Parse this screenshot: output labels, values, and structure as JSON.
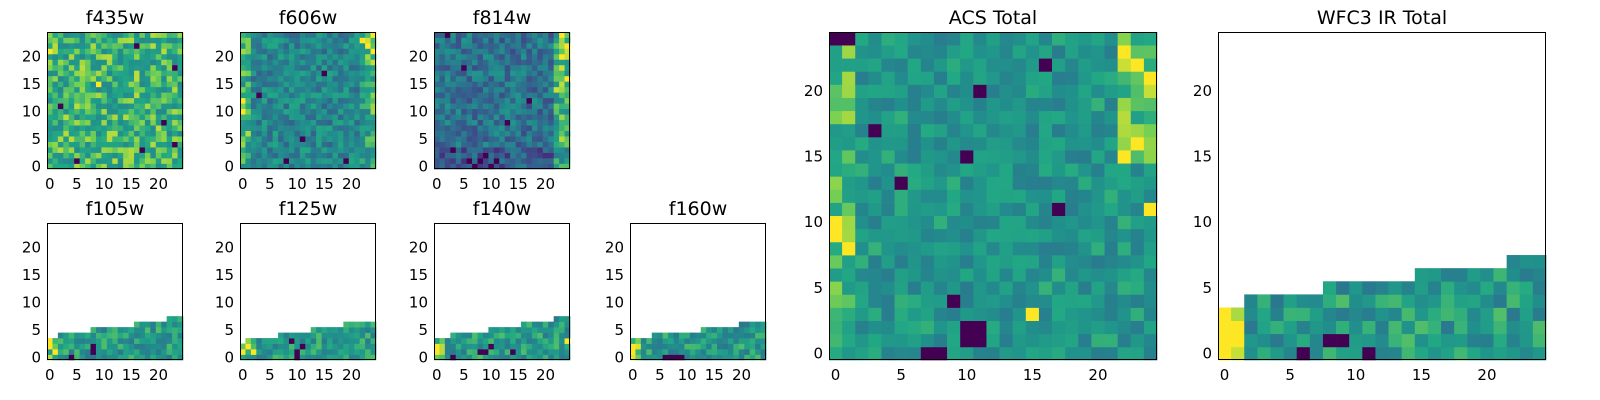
{
  "chart_data": [
    {
      "type": "heatmap",
      "title": "f435w",
      "colormap": "viridis",
      "grid": false,
      "xticks": [
        "0",
        "5",
        "10",
        "15",
        "20"
      ],
      "yticks": [
        "0",
        "5",
        "10",
        "15",
        "20"
      ],
      "xlim": [
        0,
        25
      ],
      "ylim": [
        0,
        25
      ],
      "coverage_rows_by_column": [
        25,
        25,
        25,
        25,
        25,
        25,
        25,
        25,
        25,
        25,
        25,
        25,
        25,
        25,
        25,
        25,
        25,
        25,
        25,
        25,
        25,
        25,
        25,
        25,
        25
      ],
      "dark_pixels": [
        [
          5,
          1
        ],
        [
          17,
          3
        ],
        [
          2,
          11
        ],
        [
          21,
          8
        ],
        [
          23,
          4
        ],
        [
          16,
          22
        ],
        [
          23,
          18
        ]
      ],
      "bright_pixels": [
        [
          0,
          21
        ],
        [
          9,
          15
        ]
      ],
      "level_profile": "uniform-bright"
    },
    {
      "type": "heatmap",
      "title": "f606w",
      "colormap": "viridis",
      "grid": false,
      "xticks": [
        "0",
        "5",
        "10",
        "15",
        "20"
      ],
      "yticks": [
        "0",
        "5",
        "10",
        "15",
        "20"
      ],
      "xlim": [
        0,
        25
      ],
      "ylim": [
        0,
        25
      ],
      "coverage_rows_by_column": [
        25,
        25,
        25,
        25,
        25,
        25,
        25,
        25,
        25,
        25,
        25,
        25,
        25,
        25,
        25,
        25,
        25,
        25,
        25,
        25,
        25,
        25,
        25,
        25,
        25
      ],
      "dark_pixels": [
        [
          8,
          1
        ],
        [
          3,
          13
        ],
        [
          19,
          1
        ],
        [
          15,
          17
        ],
        [
          11,
          5
        ]
      ],
      "bright_pixels": [
        [
          22,
          23
        ],
        [
          23,
          22
        ],
        [
          0,
          10
        ],
        [
          0,
          12
        ],
        [
          24,
          24
        ]
      ],
      "level_profile": "left-right-bright"
    },
    {
      "type": "heatmap",
      "title": "f814w",
      "colormap": "viridis",
      "grid": false,
      "xticks": [
        "0",
        "5",
        "10",
        "15",
        "20"
      ],
      "yticks": [
        "0",
        "5",
        "10",
        "15",
        "20"
      ],
      "xlim": [
        0,
        25
      ],
      "ylim": [
        0,
        25
      ],
      "coverage_rows_by_column": [
        25,
        25,
        25,
        25,
        25,
        25,
        25,
        25,
        25,
        25,
        25,
        25,
        25,
        25,
        25,
        25,
        25,
        25,
        25,
        25,
        25,
        25,
        25,
        25,
        25
      ],
      "dark_pixels": [
        [
          7,
          0
        ],
        [
          8,
          1
        ],
        [
          10,
          0
        ],
        [
          11,
          1
        ],
        [
          9,
          2
        ],
        [
          6,
          1
        ],
        [
          3,
          3
        ],
        [
          2,
          24
        ],
        [
          5,
          18
        ],
        [
          13,
          8
        ],
        [
          17,
          12
        ]
      ],
      "bright_pixels": [
        [
          23,
          20
        ],
        [
          24,
          22
        ],
        [
          23,
          24
        ],
        [
          24,
          16
        ]
      ],
      "level_profile": "right-bright-bottom-dark"
    },
    {
      "type": "heatmap",
      "title": "f105w",
      "colormap": "viridis",
      "grid": false,
      "xticks": [
        "0",
        "5",
        "10",
        "15",
        "20"
      ],
      "yticks": [
        "0",
        "5",
        "10",
        "15",
        "20"
      ],
      "xlim": [
        0,
        25
      ],
      "ylim": [
        0,
        25
      ],
      "coverage_rows_by_column": [
        4,
        4,
        5,
        5,
        5,
        5,
        5,
        5,
        6,
        6,
        6,
        6,
        6,
        6,
        6,
        6,
        7,
        7,
        7,
        7,
        7,
        7,
        8,
        8,
        8
      ],
      "dark_pixels": [
        [
          8,
          1
        ],
        [
          8,
          2
        ],
        [
          4,
          0
        ]
      ],
      "bright_pixels": [
        [
          0,
          2
        ],
        [
          0,
          3
        ],
        [
          1,
          1
        ]
      ],
      "level_profile": "left-bright"
    },
    {
      "type": "heatmap",
      "title": "f125w",
      "colormap": "viridis",
      "grid": false,
      "xticks": [
        "0",
        "5",
        "10",
        "15",
        "20"
      ],
      "yticks": [
        "0",
        "5",
        "10",
        "15",
        "20"
      ],
      "xlim": [
        0,
        25
      ],
      "ylim": [
        0,
        25
      ],
      "coverage_rows_by_column": [
        3,
        4,
        4,
        4,
        4,
        4,
        4,
        5,
        5,
        5,
        5,
        5,
        5,
        6,
        6,
        6,
        6,
        6,
        6,
        7,
        7,
        7,
        7,
        7,
        7
      ],
      "dark_pixels": [
        [
          10,
          0
        ],
        [
          10,
          1
        ],
        [
          11,
          2
        ],
        [
          9,
          3
        ]
      ],
      "bright_pixels": [
        [
          0,
          1
        ],
        [
          1,
          2
        ],
        [
          2,
          1
        ]
      ],
      "level_profile": "left-bright"
    },
    {
      "type": "heatmap",
      "title": "f140w",
      "colormap": "viridis",
      "grid": false,
      "xticks": [
        "0",
        "5",
        "10",
        "15",
        "20"
      ],
      "yticks": [
        "0",
        "5",
        "10",
        "15",
        "20"
      ],
      "xlim": [
        0,
        25
      ],
      "ylim": [
        0,
        25
      ],
      "coverage_rows_by_column": [
        4,
        4,
        4,
        5,
        5,
        5,
        5,
        5,
        5,
        5,
        6,
        6,
        6,
        6,
        6,
        6,
        7,
        7,
        7,
        7,
        7,
        7,
        8,
        8,
        8
      ],
      "dark_pixels": [
        [
          8,
          1
        ],
        [
          9,
          1
        ],
        [
          10,
          2
        ],
        [
          14,
          1
        ],
        [
          3,
          0
        ]
      ],
      "bright_pixels": [
        [
          0,
          1
        ],
        [
          0,
          2
        ],
        [
          24,
          3
        ]
      ],
      "level_profile": "left-bright"
    },
    {
      "type": "heatmap",
      "title": "f160w",
      "colormap": "viridis",
      "grid": false,
      "xticks": [
        "0",
        "5",
        "10",
        "15",
        "20"
      ],
      "yticks": [
        "0",
        "5",
        "10",
        "15",
        "20"
      ],
      "xlim": [
        0,
        25
      ],
      "ylim": [
        0,
        25
      ],
      "coverage_rows_by_column": [
        4,
        4,
        4,
        4,
        5,
        5,
        5,
        5,
        5,
        5,
        5,
        5,
        5,
        6,
        6,
        6,
        6,
        6,
        6,
        6,
        7,
        7,
        7,
        7,
        7
      ],
      "dark_pixels": [
        [
          6,
          0
        ],
        [
          7,
          0
        ],
        [
          8,
          0
        ],
        [
          9,
          0
        ]
      ],
      "bright_pixels": [
        [
          0,
          1
        ],
        [
          0,
          2
        ]
      ],
      "level_profile": "left-bright"
    },
    {
      "type": "heatmap",
      "title": "ACS Total",
      "colormap": "viridis",
      "grid": false,
      "xticks": [
        "0",
        "5",
        "10",
        "15",
        "20"
      ],
      "yticks": [
        "0",
        "5",
        "10",
        "15",
        "20"
      ],
      "xlim": [
        0,
        25
      ],
      "ylim": [
        0,
        25
      ],
      "coverage_rows_by_column": [
        25,
        25,
        25,
        25,
        25,
        25,
        25,
        25,
        25,
        25,
        25,
        25,
        25,
        25,
        25,
        25,
        25,
        25,
        25,
        25,
        25,
        25,
        25,
        25,
        25
      ],
      "dark_pixels": [
        [
          0,
          24
        ],
        [
          1,
          24
        ],
        [
          7,
          0
        ],
        [
          8,
          0
        ],
        [
          10,
          1
        ],
        [
          11,
          1
        ],
        [
          10,
          2
        ],
        [
          11,
          2
        ],
        [
          9,
          4
        ],
        [
          10,
          15
        ],
        [
          17,
          11
        ],
        [
          5,
          13
        ],
        [
          3,
          17
        ],
        [
          11,
          20
        ],
        [
          16,
          22
        ]
      ],
      "bright_pixels": [
        [
          0,
          10
        ],
        [
          0,
          9
        ],
        [
          1,
          8
        ],
        [
          22,
          23
        ],
        [
          23,
          22
        ],
        [
          24,
          21
        ],
        [
          22,
          15
        ],
        [
          23,
          16
        ],
        [
          24,
          11
        ],
        [
          15,
          3
        ]
      ],
      "level_profile": "edges-bright"
    },
    {
      "type": "heatmap",
      "title": "WFC3 IR Total",
      "colormap": "viridis",
      "grid": false,
      "xticks": [
        "0",
        "5",
        "10",
        "15",
        "20"
      ],
      "yticks": [
        "0",
        "5",
        "10",
        "15",
        "20"
      ],
      "xlim": [
        0,
        25
      ],
      "ylim": [
        0,
        25
      ],
      "coverage_rows_by_column": [
        4,
        4,
        5,
        5,
        5,
        5,
        5,
        5,
        6,
        6,
        6,
        6,
        6,
        6,
        6,
        7,
        7,
        7,
        7,
        7,
        7,
        7,
        8,
        8,
        8
      ],
      "dark_pixels": [
        [
          8,
          1
        ],
        [
          9,
          1
        ],
        [
          11,
          0
        ],
        [
          6,
          0
        ]
      ],
      "bright_pixels": [
        [
          0,
          0
        ],
        [
          0,
          1
        ],
        [
          0,
          2
        ],
        [
          1,
          1
        ],
        [
          1,
          2
        ],
        [
          0,
          3
        ]
      ],
      "level_profile": "left-bright"
    }
  ]
}
